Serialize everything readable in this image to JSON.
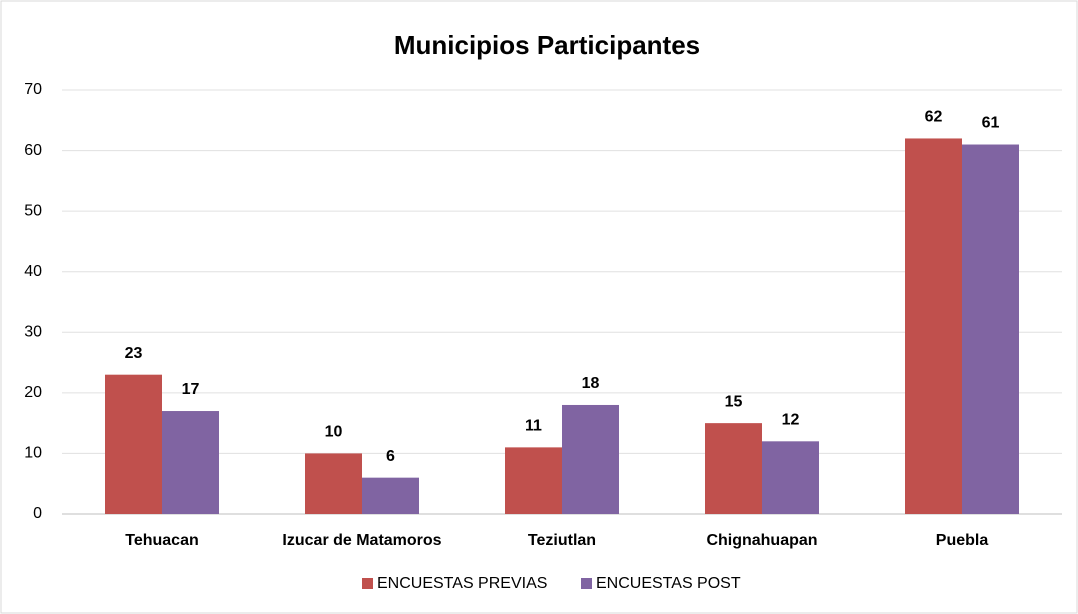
{
  "chart_data": {
    "type": "bar",
    "title": "Municipios Participantes",
    "categories": [
      "Tehuacan",
      "Izucar de Matamoros",
      "Teziutlan",
      "Chignahuapan",
      "Puebla"
    ],
    "series": [
      {
        "name": "ENCUESTAS PREVIAS",
        "color": "#c0504d",
        "values": [
          23,
          10,
          11,
          15,
          62
        ]
      },
      {
        "name": "ENCUESTAS POST",
        "color": "#8064a2",
        "values": [
          17,
          6,
          18,
          12,
          61
        ]
      }
    ],
    "ylim": [
      0,
      70
    ],
    "yticks": [
      0,
      10,
      20,
      30,
      40,
      50,
      60,
      70
    ],
    "grid": true,
    "legend": "bottom"
  }
}
